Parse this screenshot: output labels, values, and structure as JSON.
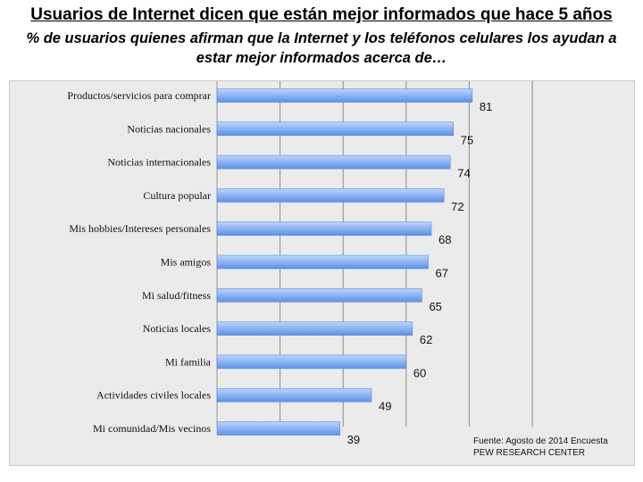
{
  "chart_data": {
    "type": "bar",
    "orientation": "horizontal",
    "title": "Usuarios de Internet dicen que están mejor informados que hace 5 años",
    "subtitle_lines": [
      "% de usuarios quienes afirman que la Internet y los teléfonos celulares los ayudan a",
      "estar mejor informados acerca de…"
    ],
    "categories": [
      "Productos/servicios para comprar",
      "Noticias nacionales",
      "Noticias internacionales",
      "Cultura popular",
      "Mis hobbies/Intereses personales",
      "Mis amigos",
      "Mi salud/fitness",
      "Noticias locales",
      "Mi familia",
      "Actividades civiles locales",
      "Mi comunidad/Mis vecinos"
    ],
    "values": [
      81,
      75,
      74,
      72,
      68,
      67,
      65,
      62,
      60,
      49,
      39
    ],
    "xlim": [
      0,
      100
    ],
    "grid": true,
    "source_lines": [
      "Fuente: Agosto de 2014 Encuesta",
      "PEW RESEARCH CENTER"
    ],
    "colors": {
      "bar_top": "#bcd6fb",
      "bar_bottom": "#5c92ea",
      "panel": "#ebebeb",
      "grid": "#8a8a8a"
    }
  }
}
